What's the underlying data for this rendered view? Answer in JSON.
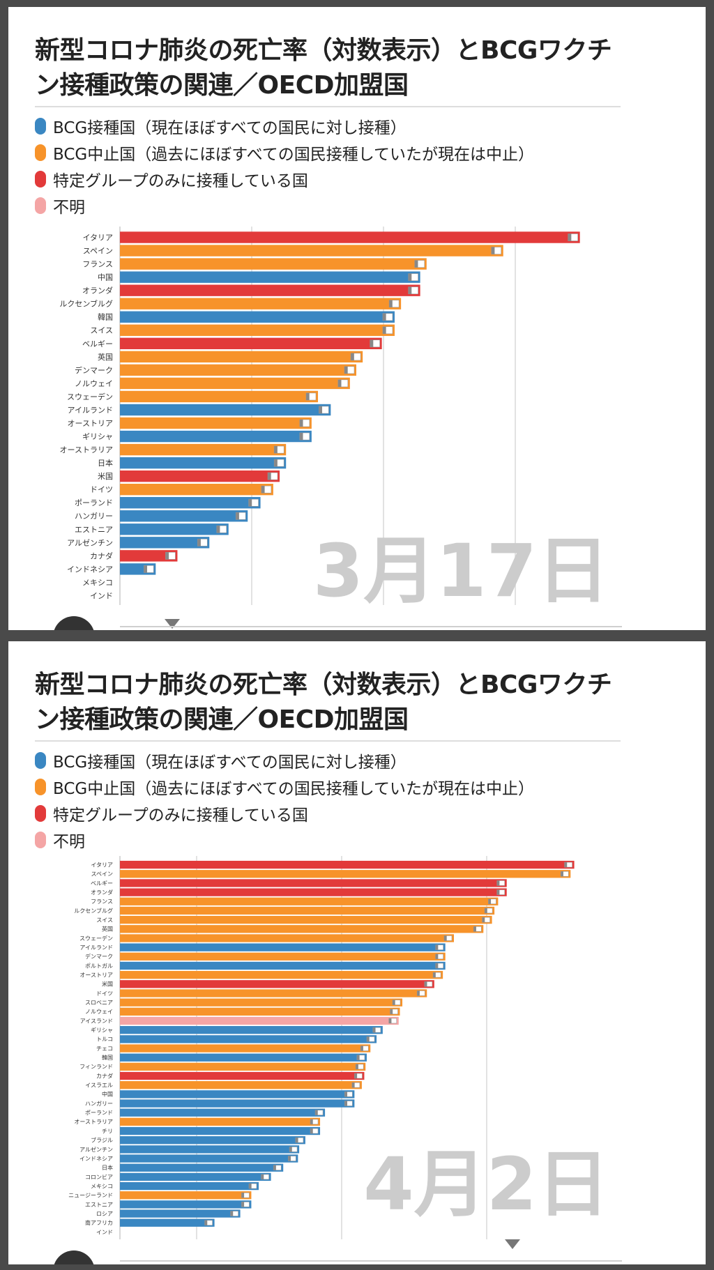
{
  "colors": {
    "blue": "#3a87c2",
    "orange": "#f7932a",
    "red": "#e23a3a",
    "pink": "#f4a5a5"
  },
  "panels": [
    {
      "title": "新型コロナ肺炎の死亡率（対数表示）とBCGワクチン接種政策の関連／OECD加盟国",
      "legend": [
        {
          "label": "BCG接種国（現在ほぼすべての国民に対し接種）",
          "color": "#3a87c2"
        },
        {
          "label": "BCG中止国（過去にほぼすべての国民接種していたが現在は中止）",
          "color": "#f7932a"
        },
        {
          "label": "特定グループのみに接種している国",
          "color": "#e23a3a"
        },
        {
          "label": "不明",
          "color": "#f4a5a5"
        }
      ],
      "chart_data": {
        "type": "bar",
        "title": "新型コロナ肺炎の死亡率（対数表示）とBCGワクチン接種政策の関連／OECD加盟国",
        "date_label": "3月17日",
        "categories": [
          "イタリア",
          "スペイン",
          "フランス",
          "中国",
          "オランダ",
          "ルクセンブルグ",
          "韓国",
          "スイス",
          "ベルギー",
          "英国",
          "デンマーク",
          "ノルウェイ",
          "スウェーデン",
          "アイルランド",
          "オーストリア",
          "ギリシャ",
          "オーストラリア",
          "日本",
          "米国",
          "ドイツ",
          "ポーランド",
          "ハンガリー",
          "エストニア",
          "アルゼンチン",
          "カナダ",
          "インドネシア",
          "メキシコ",
          "インド"
        ],
        "values": [
          3.6,
          3.0,
          2.4,
          2.35,
          2.35,
          2.2,
          2.15,
          2.15,
          2.05,
          1.9,
          1.85,
          1.8,
          1.55,
          1.65,
          1.5,
          1.5,
          1.3,
          1.3,
          1.25,
          1.2,
          1.1,
          1.0,
          0.85,
          0.7,
          0.45,
          0.28,
          0.0,
          0.0
        ],
        "policy": [
          "red",
          "orange",
          "orange",
          "blue",
          "red",
          "orange",
          "blue",
          "orange",
          "red",
          "orange",
          "orange",
          "orange",
          "orange",
          "blue",
          "orange",
          "blue",
          "orange",
          "blue",
          "red",
          "orange",
          "blue",
          "blue",
          "blue",
          "blue",
          "red",
          "blue",
          "blue",
          "blue"
        ],
        "xlim": [
          0,
          3.7
        ],
        "grid": true
      }
    },
    {
      "title": "新型コロナ肺炎の死亡率（対数表示）とBCGワクチン接種政策の関連／OECD加盟国",
      "legend": [
        {
          "label": "BCG接種国（現在ほぼすべての国民に対し接種）",
          "color": "#3a87c2"
        },
        {
          "label": "BCG中止国（過去にほぼすべての国民接種していたが現在は中止）",
          "color": "#f7932a"
        },
        {
          "label": "特定グループのみに接種している国",
          "color": "#e23a3a"
        },
        {
          "label": "不明",
          "color": "#f4a5a5"
        }
      ],
      "chart_data": {
        "type": "bar",
        "title": "新型コロナ肺炎の死亡率（対数表示）とBCGワクチン接種政策の関連／OECD加盟国",
        "date_label": "4月2日",
        "categories": [
          "イタリア",
          "スペイン",
          "ベルギー",
          "オランダ",
          "フランス",
          "ルクセンブルグ",
          "スイス",
          "英国",
          "スウェーデン",
          "アイルランド",
          "デンマーク",
          "ポルトガル",
          "オーストリア",
          "米国",
          "ドイツ",
          "スロベニア",
          "ノルウェイ",
          "アイスランド",
          "ギリシャ",
          "トルコ",
          "チェコ",
          "韓国",
          "フィンランド",
          "カナダ",
          "イスラエル",
          "中国",
          "ハンガリー",
          "ポーランド",
          "オーストラリア",
          "チリ",
          "ブラジル",
          "アルゼンチン",
          "インドネシア",
          "日本",
          "コロンビア",
          "メキシコ",
          "ニュージーランド",
          "エストニア",
          "ロシア",
          "南アフリカ",
          "インド"
        ],
        "values": [
          3.7,
          3.67,
          3.15,
          3.15,
          3.08,
          3.05,
          3.03,
          2.96,
          2.72,
          2.65,
          2.65,
          2.65,
          2.63,
          2.56,
          2.5,
          2.3,
          2.28,
          2.27,
          2.14,
          2.09,
          2.04,
          2.01,
          2.0,
          1.99,
          1.97,
          1.91,
          1.91,
          1.67,
          1.63,
          1.63,
          1.51,
          1.46,
          1.45,
          1.33,
          1.23,
          1.13,
          1.07,
          1.07,
          0.98,
          0.77,
          0.0
        ],
        "policy": [
          "red",
          "orange",
          "red",
          "red",
          "orange",
          "orange",
          "orange",
          "orange",
          "orange",
          "blue",
          "orange",
          "blue",
          "orange",
          "red",
          "orange",
          "orange",
          "orange",
          "pink",
          "blue",
          "blue",
          "orange",
          "blue",
          "orange",
          "red",
          "orange",
          "blue",
          "blue",
          "blue",
          "orange",
          "blue",
          "blue",
          "blue",
          "blue",
          "blue",
          "blue",
          "blue",
          "orange",
          "blue",
          "blue",
          "blue",
          "blue"
        ],
        "xlim": [
          0,
          3.85
        ],
        "grid": true
      }
    }
  ]
}
